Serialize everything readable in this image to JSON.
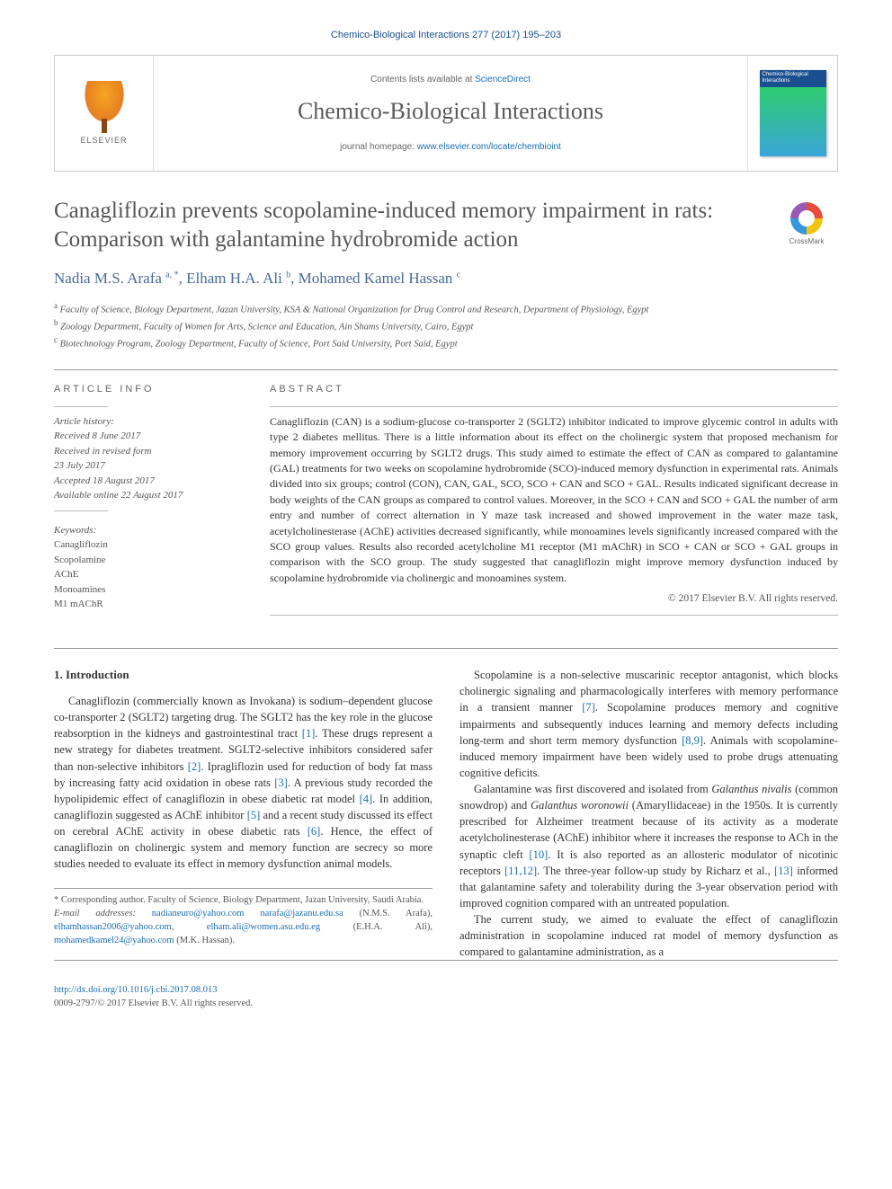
{
  "runningHead": "Chemico-Biological Interactions 277 (2017) 195–203",
  "masthead": {
    "contentsPrefix": "Contents lists available at ",
    "contentsLink": "ScienceDirect",
    "journalName": "Chemico-Biological Interactions",
    "homepagePrefix": "journal homepage: ",
    "homepageUrl": "www.elsevier.com/locate/chembioint",
    "elsevierLabel": "ELSEVIER",
    "coverTitle": "Chemico-Biological Interactions"
  },
  "crossmarkLabel": "CrossMark",
  "title": "Canagliflozin prevents scopolamine-induced memory impairment in rats: Comparison with galantamine hydrobromide action",
  "authorsHtml": "Nadia M.S. Arafa <sup>a, *</sup>, Elham H.A. Ali <sup>b</sup>, Mohamed Kamel Hassan <sup>c</sup>",
  "affiliations": [
    {
      "sup": "a",
      "text": "Faculty of Science, Biology Department, Jazan University, KSA & National Organization for Drug Control and Research, Department of Physiology, Egypt"
    },
    {
      "sup": "b",
      "text": "Zoology Department, Faculty of Women for Arts, Science and Education, Ain Shams University, Cairo, Egypt"
    },
    {
      "sup": "c",
      "text": "Biotechnology Program, Zoology Department, Faculty of Science, Port Said University, Port Said, Egypt"
    }
  ],
  "articleInfo": {
    "heading": "ARTICLE INFO",
    "historyLabel": "Article history:",
    "history": [
      "Received 8 June 2017",
      "Received in revised form",
      "23 July 2017",
      "Accepted 18 August 2017",
      "Available online 22 August 2017"
    ],
    "keywordsLabel": "Keywords:",
    "keywords": [
      "Canagliflozin",
      "Scopolamine",
      "AChE",
      "Monoamines",
      "M1 mAChR"
    ]
  },
  "abstract": {
    "heading": "ABSTRACT",
    "text": "Canagliflozin (CAN) is a sodium-glucose co-transporter 2 (SGLT2) inhibitor indicated to improve glycemic control in adults with type 2 diabetes mellitus. There is a little information about its effect on the cholinergic system that proposed mechanism for memory improvement occurring by SGLT2 drugs. This study aimed to estimate the effect of CAN as compared to galantamine (GAL) treatments for two weeks on scopolamine hydrobromide (SCO)-induced memory dysfunction in experimental rats. Animals divided into six groups; control (CON), CAN, GAL, SCO, SCO + CAN and SCO + GAL. Results indicated significant decrease in body weights of the CAN groups as compared to control values. Moreover, in the SCO + CAN and SCO + GAL the number of arm entry and number of correct alternation in Y maze task increased and showed improvement in the water maze task, acetylcholinesterase (AChE) activities decreased significantly, while monoamines levels significantly increased compared with the SCO group values. Results also recorded acetylcholine M1 receptor (M1 mAChR) in SCO + CAN or SCO + GAL groups in comparison with the SCO group. The study suggested that canagliflozin might improve memory dysfunction induced by scopolamine hydrobromide via cholinergic and monoamines system.",
    "copyright": "© 2017 Elsevier B.V. All rights reserved."
  },
  "body": {
    "introHeading": "1. Introduction",
    "leftParas": [
      "Canagliflozin (commercially known as Invokana) is sodium–dependent glucose co-transporter 2 (SGLT2) targeting drug. The SGLT2 has the key role in the glucose reabsorption in the kidneys and gastrointestinal tract [1]. These drugs represent a new strategy for diabetes treatment. SGLT2-selective inhibitors considered safer than non-selective inhibitors [2]. Ipragliflozin used for reduction of body fat mass by increasing fatty acid oxidation in obese rats [3]. A previous study recorded the hypolipidemic effect of canagliflozin in obese diabetic rat model [4]. In addition, canagliflozin suggested as AChE inhibitor [5] and a recent study discussed its effect on cerebral AChE activity in obese diabetic rats [6]. Hence, the effect of canagliflozin on cholinergic system and memory function are secrecy so more studies needed to evaluate its effect in memory dysfunction animal models."
    ],
    "rightParas": [
      "Scopolamine is a non-selective muscarinic receptor antagonist, which blocks cholinergic signaling and pharmacologically interferes with memory performance in a transient manner [7]. Scopolamine produces memory and cognitive impairments and subsequently induces learning and memory defects including long-term and short term memory dysfunction [8,9]. Animals with scopolamine-induced memory impairment have been widely used to probe drugs attenuating cognitive deficits.",
      "Galantamine was first discovered and isolated from Galanthus nivalis (common snowdrop) and Galanthus woronowii (Amaryllidaceae) in the 1950s. It is currently prescribed for Alzheimer treatment because of its activity as a moderate acetylcholinesterase (AChE) inhibitor where it increases the response to ACh in the synaptic cleft [10]. It is also reported as an allosteric modulator of nicotinic receptors [11,12]. The three-year follow-up study by Richarz et al., [13] informed that galantamine safety and tolerability during the 3-year observation period with improved cognition compared with an untreated population.",
      "The current study, we aimed to evaluate the effect of canagliflozin administration in scopolamine induced rat model of memory dysfunction as compared to galantamine administration, as a"
    ],
    "refNumbers": {
      "r1": "[1]",
      "r2": "[2]",
      "r3": "[3]",
      "r4": "[4]",
      "r5": "[5]",
      "r6": "[6]",
      "r7": "[7]",
      "r89": "[8,9]",
      "r10": "[10]",
      "r1112": "[11,12]",
      "r13": "[13]"
    }
  },
  "footnotes": {
    "corresponding": "* Corresponding author. Faculty of Science, Biology Department, Jazan University, Saudi Arabia.",
    "emailLabel": "E-mail addresses:",
    "emails": [
      {
        "addr": "nadianeuro@yahoo.com",
        "who": ""
      },
      {
        "addr": "narafa@jazanu.edu.sa",
        "who": " (N.M.S. Arafa), "
      },
      {
        "addr": "elhamhassan2006@yahoo.com",
        "who": ", "
      },
      {
        "addr": "elham.ali@women.asu.edu.eg",
        "who": " (E.H.A. Ali), "
      },
      {
        "addr": "mohamedkamel24@yahoo.com",
        "who": " (M.K. Hassan)."
      }
    ]
  },
  "footer": {
    "doi": "http://dx.doi.org/10.1016/j.cbi.2017.08.013",
    "issn": "0009-2797/© 2017 Elsevier B.V. All rights reserved."
  },
  "colors": {
    "link": "#1a6db5",
    "headingBlue": "#1a4f8f",
    "authorBlue": "#4a6a9a",
    "textGray": "#333333",
    "lightGray": "#666666"
  }
}
